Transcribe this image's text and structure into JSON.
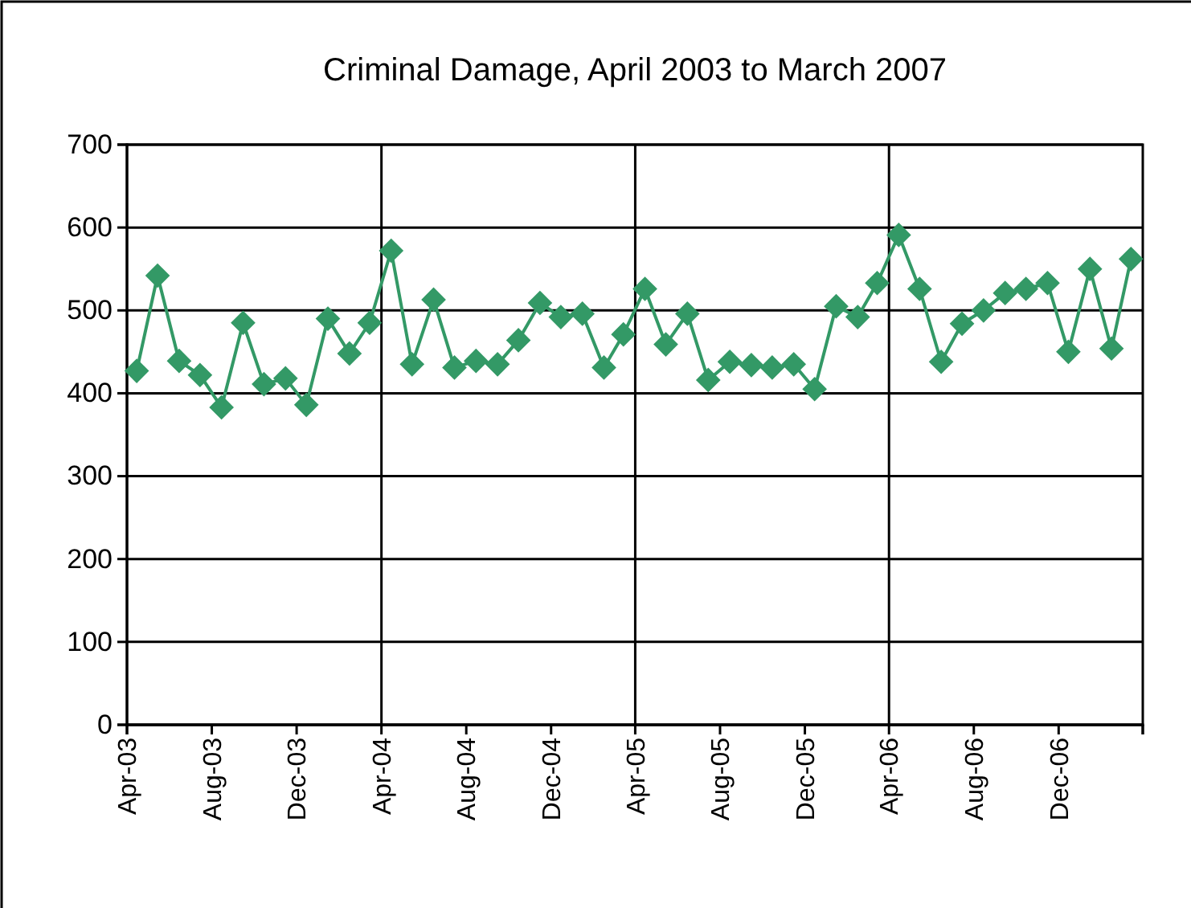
{
  "chart_data": {
    "type": "line",
    "title": "Criminal Damage, April 2003 to March 2007",
    "x": [
      "2003-04-15",
      "2003-05-15",
      "2003-06-15",
      "2003-07-15",
      "2003-08-15",
      "2003-09-15",
      "2003-10-15",
      "2003-11-15",
      "2003-12-15",
      "2004-01-15",
      "2004-02-15",
      "2004-03-15",
      "2004-04-15",
      "2004-05-15",
      "2004-06-15",
      "2004-07-15",
      "2004-08-15",
      "2004-09-15",
      "2004-10-15",
      "2004-11-15",
      "2004-12-15",
      "2005-01-15",
      "2005-02-15",
      "2005-03-15",
      "2005-04-15",
      "2005-05-15",
      "2005-06-15",
      "2005-07-15",
      "2005-08-15",
      "2005-09-15",
      "2005-10-15",
      "2005-11-15",
      "2005-12-15",
      "2006-01-15",
      "2006-02-15",
      "2006-03-15",
      "2006-04-15",
      "2006-05-15",
      "2006-06-15",
      "2006-07-15",
      "2006-08-15",
      "2006-09-15",
      "2006-10-15",
      "2006-11-15",
      "2006-12-15",
      "2007-01-15",
      "2007-02-15",
      "2007-03-15"
    ],
    "series": [
      {
        "color": "#339966",
        "values": [
          427,
          542,
          439,
          422,
          383,
          485,
          411,
          418,
          386,
          490,
          448,
          485,
          572,
          435,
          513,
          431,
          439,
          435,
          464,
          509,
          492,
          496,
          431,
          471,
          526,
          459,
          496,
          416,
          438,
          434,
          431,
          435,
          405,
          505,
          492,
          533,
          591,
          526,
          438,
          484,
          500,
          521,
          526,
          533,
          450,
          550,
          454,
          562
        ]
      }
    ],
    "xlim": [
      "2003-04-01",
      "2007-04-01"
    ],
    "xticks": [
      {
        "value": "2003-04-01",
        "label": "Apr-03"
      },
      {
        "value": "2003-08-01",
        "label": "Aug-03"
      },
      {
        "value": "2003-12-01",
        "label": "Dec-03"
      },
      {
        "value": "2004-04-01",
        "label": "Apr-04"
      },
      {
        "value": "2004-08-01",
        "label": "Aug-04"
      },
      {
        "value": "2004-12-01",
        "label": "Dec-04"
      },
      {
        "value": "2005-04-01",
        "label": "Apr-05"
      },
      {
        "value": "2005-08-01",
        "label": "Aug-05"
      },
      {
        "value": "2005-12-01",
        "label": "Dec-05"
      },
      {
        "value": "2006-04-01",
        "label": "Apr-06"
      },
      {
        "value": "2006-08-01",
        "label": "Aug-06"
      },
      {
        "value": "2006-12-01",
        "label": "Dec-06"
      },
      {
        "value": "2007-04-01",
        "label": null
      }
    ],
    "ylim": [
      0,
      700
    ],
    "yticks": [
      0,
      100,
      200,
      300,
      400,
      500,
      600,
      700
    ],
    "grid": "y",
    "marker": "diamond",
    "line_style": "solid",
    "ref_lines": [
      {
        "axis": "x",
        "value": "2004-04-01",
        "color": "#000000"
      },
      {
        "axis": "x",
        "value": "2005-04-01",
        "color": "#000000"
      },
      {
        "axis": "x",
        "value": "2006-04-01",
        "color": "#000000"
      }
    ]
  }
}
